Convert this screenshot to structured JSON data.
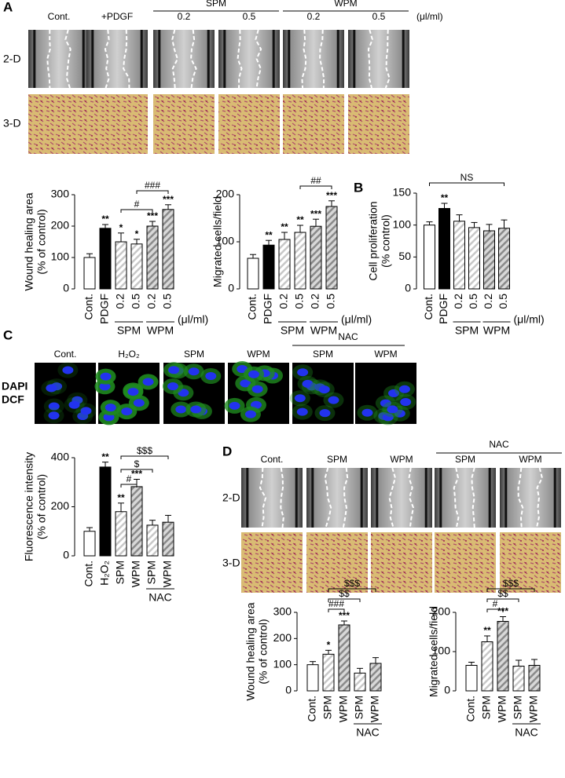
{
  "panel_labels": [
    "A",
    "B",
    "C",
    "D"
  ],
  "panel_a_images": {
    "columns": [
      "Cont.",
      "+PDGF",
      "0.2",
      "0.5",
      "0.2",
      "0.5"
    ],
    "groups": [
      "SPM",
      "WPM"
    ],
    "unit": "(μl/ml)",
    "rows": [
      "2-D",
      "3-D"
    ]
  },
  "panel_c_images": {
    "columns": [
      "Cont.",
      "H₂O₂",
      "SPM",
      "WPM",
      "SPM",
      "WPM"
    ],
    "group": "NAC",
    "stains": [
      "DAPI",
      "DCF"
    ]
  },
  "panel_d_images": {
    "columns": [
      "Cont.",
      "SPM",
      "WPM",
      "SPM",
      "WPM"
    ],
    "group": "NAC",
    "rows": [
      "2-D",
      "3-D"
    ]
  },
  "chart_data": [
    {
      "type": "bar",
      "ylabel": [
        "Wound healing area",
        "(% of control)"
      ],
      "ylim": [
        0,
        300
      ],
      "yticks": [
        0,
        100,
        200,
        300
      ],
      "categories": [
        "Cont.",
        "PDGF",
        "0.2",
        "0.5",
        "0.2",
        "0.5"
      ],
      "values": [
        100,
        193,
        150,
        143,
        200,
        253
      ],
      "errors": [
        12,
        12,
        28,
        15,
        15,
        15
      ],
      "fills": [
        "open",
        "solid",
        "hatch",
        "hatch",
        "hatch-dark",
        "hatch-dark"
      ],
      "sig_labels": [
        null,
        "**",
        "*",
        "*",
        "***",
        "***"
      ],
      "groups": [
        {
          "label": "SPM",
          "from": 2,
          "to": 3
        },
        {
          "label": "WPM",
          "from": 4,
          "to": 5
        }
      ],
      "x_unit": "(μl/ml)",
      "brackets": [
        {
          "label": "#",
          "from": 2,
          "to": 4
        },
        {
          "label": "###",
          "from": 3,
          "to": 5
        }
      ]
    },
    {
      "type": "bar",
      "ylabel": [
        "Migrated cells/field"
      ],
      "ylim": [
        0,
        200
      ],
      "yticks": [
        0,
        100,
        200
      ],
      "categories": [
        "Cont.",
        "PDGF",
        "0.2",
        "0.5",
        "0.2",
        "0.5"
      ],
      "values": [
        65,
        93,
        105,
        120,
        133,
        175
      ],
      "errors": [
        8,
        10,
        15,
        15,
        15,
        12
      ],
      "fills": [
        "open",
        "solid",
        "hatch",
        "hatch",
        "hatch-dark",
        "hatch-dark"
      ],
      "sig_labels": [
        null,
        "**",
        "**",
        "**",
        "***",
        "***"
      ],
      "groups": [
        {
          "label": "SPM",
          "from": 2,
          "to": 3
        },
        {
          "label": "WPM",
          "from": 4,
          "to": 5
        }
      ],
      "x_unit": "(μl/ml)",
      "brackets": [
        {
          "label": "##",
          "from": 3,
          "to": 5
        }
      ]
    },
    {
      "type": "bar",
      "ylabel": [
        "Cell proliferation",
        "(% control)"
      ],
      "ylim": [
        0,
        150
      ],
      "yticks": [
        0,
        50,
        100,
        150
      ],
      "categories": [
        "Cont.",
        "PDGF",
        "0.2",
        "0.5",
        "0.2",
        "0.5"
      ],
      "values": [
        100,
        126,
        106,
        96,
        91,
        95
      ],
      "errors": [
        5,
        8,
        10,
        8,
        10,
        13
      ],
      "fills": [
        "open",
        "solid",
        "hatch",
        "hatch",
        "hatch-dark",
        "hatch-dark"
      ],
      "sig_labels": [
        null,
        "**",
        null,
        null,
        null,
        null
      ],
      "groups": [
        {
          "label": "SPM",
          "from": 2,
          "to": 3
        },
        {
          "label": "WPM",
          "from": 4,
          "to": 5
        }
      ],
      "x_unit": "(μl/ml)",
      "brackets": [
        {
          "label": "NS",
          "from": 0,
          "to": 5
        }
      ]
    },
    {
      "type": "bar",
      "ylabel": [
        "Fluorescence intensity",
        "(% of control)"
      ],
      "ylim": [
        0,
        400
      ],
      "yticks": [
        0,
        200,
        400
      ],
      "categories": [
        "Cont.",
        "H₂O₂",
        "SPM",
        "WPM",
        "SPM",
        "WPM"
      ],
      "values": [
        100,
        362,
        180,
        282,
        125,
        137
      ],
      "errors": [
        15,
        20,
        35,
        30,
        20,
        28
      ],
      "fills": [
        "open",
        "solid",
        "hatch",
        "hatch-dark",
        "hatch",
        "hatch-dark"
      ],
      "sig_labels": [
        null,
        "**",
        "**",
        "***",
        null,
        null
      ],
      "groups": [
        {
          "label": "NAC",
          "from": 4,
          "to": 5
        }
      ],
      "brackets": [
        {
          "label": "#",
          "from": 2,
          "to": 3
        },
        {
          "label": "$",
          "from": 2,
          "to": 4
        },
        {
          "label": "$$$",
          "from": 2,
          "to": 5
        }
      ]
    },
    {
      "type": "bar",
      "ylabel": [
        "Wound healing area",
        "(% of control)"
      ],
      "ylim": [
        0,
        300
      ],
      "yticks": [
        0,
        100,
        200,
        300
      ],
      "categories": [
        "Cont.",
        "SPM",
        "WPM",
        "SPM",
        "WPM"
      ],
      "values": [
        100,
        140,
        252,
        68,
        105
      ],
      "errors": [
        12,
        15,
        15,
        18,
        22
      ],
      "fills": [
        "open",
        "hatch",
        "hatch-dark",
        "hatch",
        "hatch-dark"
      ],
      "sig_labels": [
        null,
        "*",
        "***",
        null,
        null
      ],
      "groups": [
        {
          "label": "NAC",
          "from": 3,
          "to": 4
        }
      ],
      "brackets": [
        {
          "label": "###",
          "from": 1,
          "to": 2
        },
        {
          "label": "$$",
          "from": 1,
          "to": 3
        },
        {
          "label": "$$$",
          "from": 1,
          "to": 4
        }
      ]
    },
    {
      "type": "bar",
      "ylabel": [
        "Migrated cells/field"
      ],
      "ylim": [
        0,
        200
      ],
      "yticks": [
        0,
        100,
        200
      ],
      "categories": [
        "Cont.",
        "SPM",
        "WPM",
        "SPM",
        "WPM"
      ],
      "values": [
        65,
        125,
        177,
        63,
        65
      ],
      "errors": [
        8,
        15,
        12,
        15,
        15
      ],
      "fills": [
        "open",
        "hatch",
        "hatch-dark",
        "hatch",
        "hatch-dark"
      ],
      "sig_labels": [
        null,
        "**",
        "***",
        null,
        null
      ],
      "groups": [
        {
          "label": "NAC",
          "from": 3,
          "to": 4
        }
      ],
      "brackets": [
        {
          "label": "#",
          "from": 1,
          "to": 2
        },
        {
          "label": "$$",
          "from": 1,
          "to": 3
        },
        {
          "label": "$$$",
          "from": 1,
          "to": 4
        }
      ]
    }
  ]
}
